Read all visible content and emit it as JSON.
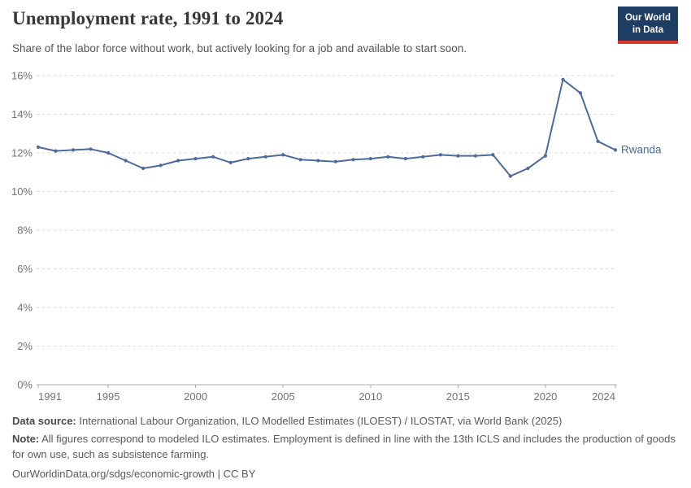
{
  "header": {
    "title": "Unemployment rate, 1991 to 2024",
    "subtitle": "Share of the labor force without work, but actively looking for a job and available to start soon."
  },
  "logo": {
    "line1": "Our World",
    "line2": "in Data",
    "bg_color": "#1d3d63",
    "accent_color": "#dc352c"
  },
  "chart_data": {
    "type": "line",
    "title": "Unemployment rate, 1991 to 2024",
    "unit": "%",
    "entity_label": "Rwanda",
    "x": [
      1991,
      1992,
      1993,
      1994,
      1995,
      1996,
      1997,
      1998,
      1999,
      2000,
      2001,
      2002,
      2003,
      2004,
      2005,
      2006,
      2007,
      2008,
      2009,
      2010,
      2011,
      2012,
      2013,
      2014,
      2015,
      2016,
      2017,
      2018,
      2019,
      2020,
      2021,
      2022,
      2023,
      2024
    ],
    "series": [
      {
        "name": "Rwanda",
        "color": "#4C6A9C",
        "values": [
          12.3,
          12.1,
          12.15,
          12.2,
          12.0,
          11.6,
          11.2,
          11.35,
          11.6,
          11.7,
          11.8,
          11.5,
          11.7,
          11.8,
          11.9,
          11.65,
          11.6,
          11.55,
          11.65,
          11.7,
          11.8,
          11.7,
          11.8,
          11.9,
          11.85,
          11.85,
          11.9,
          10.8,
          11.2,
          11.85,
          15.8,
          15.1,
          12.6,
          12.15
        ]
      }
    ],
    "xticks": [
      1991,
      1995,
      2000,
      2005,
      2010,
      2015,
      2020,
      2024
    ],
    "yticks": [
      0,
      2,
      4,
      6,
      8,
      10,
      12,
      14,
      16
    ],
    "ytick_suffix": "%",
    "xlim": [
      1991,
      2024
    ],
    "ylim": [
      0,
      16.5
    ],
    "grid": true,
    "legend_position": "line-end-label"
  },
  "footer": {
    "source_label": "Data source:",
    "source_text": "International Labour Organization, ILO Modelled Estimates (ILOEST) / ILOSTAT, via World Bank (2025)",
    "note_label": "Note:",
    "note_text": "All figures correspond to modeled ILO estimates. Employment is defined in line with the 13th ICLS and includes the production of goods for own use, such as subsistence farming.",
    "citation": "OurWorldinData.org/sdgs/economic-growth | CC BY"
  }
}
